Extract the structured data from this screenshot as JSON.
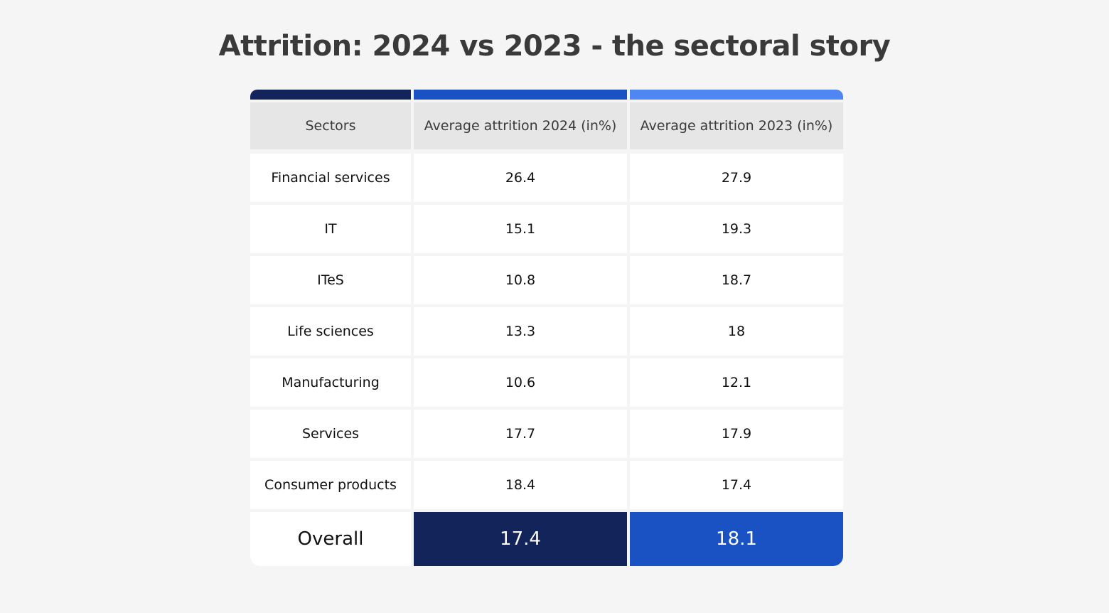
{
  "title": "Attrition: 2024 vs 2023 - the sectoral story",
  "colors": {
    "background": "#f5f5f5",
    "header_bar_1": "#12245a",
    "header_bar_2": "#1a52c4",
    "header_bar_3": "#4f86f2",
    "header_fill": "#e6e6e6",
    "overall_2024": "#12245a",
    "overall_2023": "#1a52c4"
  },
  "chart_data": {
    "type": "table",
    "title": "Attrition: 2024 vs 2023 - the sectoral story",
    "columns": [
      "Sectors",
      "Average attrition 2024 (in%)",
      "Average attrition 2023 (in%)"
    ],
    "rows": [
      {
        "sector": "Financial services",
        "v2024": "26.4",
        "v2023": "27.9"
      },
      {
        "sector": "IT",
        "v2024": "15.1",
        "v2023": "19.3"
      },
      {
        "sector": "ITeS",
        "v2024": "10.8",
        "v2023": "18.7"
      },
      {
        "sector": "Life sciences",
        "v2024": "13.3",
        "v2023": "18"
      },
      {
        "sector": "Manufacturing",
        "v2024": "10.6",
        "v2023": "12.1"
      },
      {
        "sector": "Services",
        "v2024": "17.7",
        "v2023": "17.9"
      },
      {
        "sector": "Consumer products",
        "v2024": "18.4",
        "v2023": "17.4"
      }
    ],
    "overall": {
      "label": "Overall",
      "v2024": "17.4",
      "v2023": "18.1"
    }
  }
}
